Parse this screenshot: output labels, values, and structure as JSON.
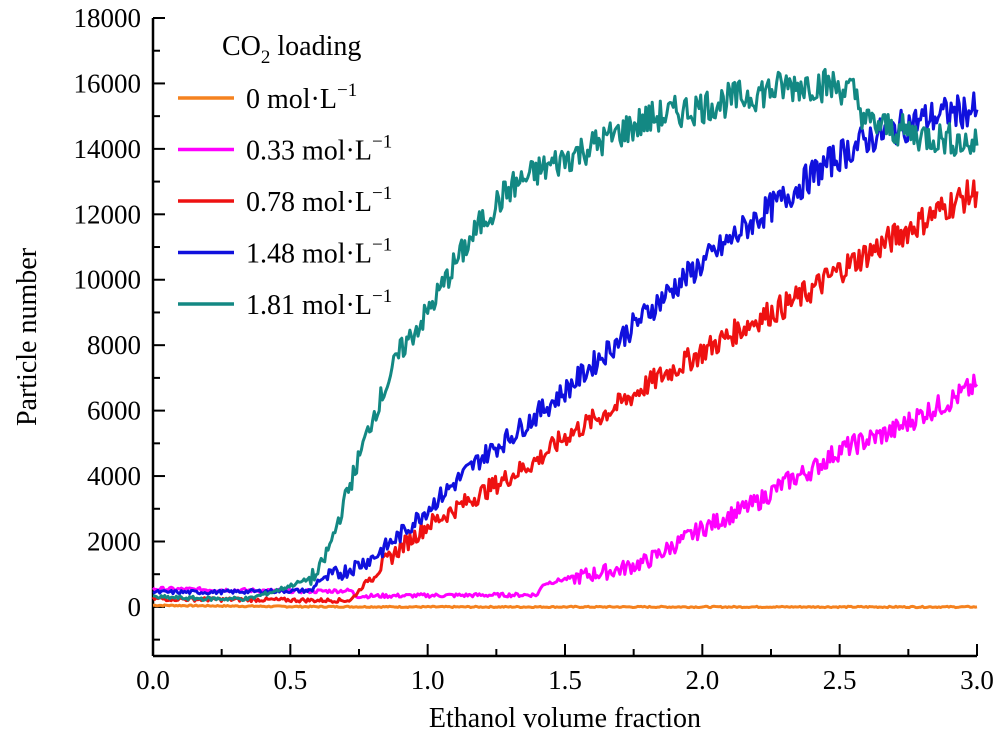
{
  "chart_data": {
    "type": "line",
    "title": "",
    "xlabel": "Ethanol volume fraction",
    "ylabel": "Particle number",
    "xlim": [
      0,
      3.0
    ],
    "ylim": [
      -1500,
      18000
    ],
    "xticks": [
      "0.0",
      "0.5",
      "1.0",
      "1.5",
      "2.0",
      "2.5",
      "3.0"
    ],
    "xtick_values": [
      0,
      0.5,
      1.0,
      1.5,
      2.0,
      2.5,
      3.0
    ],
    "yticks": [
      "0",
      "2000",
      "4000",
      "6000",
      "8000",
      "10000",
      "12000",
      "14000",
      "16000",
      "18000"
    ],
    "ytick_values": [
      0,
      2000,
      4000,
      6000,
      8000,
      10000,
      12000,
      14000,
      16000,
      18000
    ],
    "grid": false,
    "legend": {
      "title": "CO₂ loading",
      "title_main": "CO",
      "title_sub": "2",
      "title_rest": " loading",
      "placement": "top-left"
    },
    "series": [
      {
        "name": "0 mol·L⁻¹",
        "label_main": "0 mol·L",
        "label_sup": "−1",
        "color": "#f5821f",
        "x": [
          0,
          0.5,
          1.0,
          1.5,
          2.0,
          2.5,
          3.0
        ],
        "y": [
          50,
          10,
          0,
          0,
          0,
          0,
          0
        ]
      },
      {
        "name": "0.33 mol·L⁻¹",
        "label_main": "0.33 mol·L",
        "label_sup": "−1",
        "color": "#ff00ff",
        "x": [
          0,
          0.2,
          0.4,
          0.6,
          0.72,
          0.74,
          1.0,
          1.2,
          1.4,
          1.42,
          1.5,
          1.6,
          1.7,
          1.8,
          1.9,
          2.0,
          2.1,
          2.2,
          2.3,
          2.4,
          2.5,
          2.6,
          2.7,
          2.8,
          2.9,
          3.0
        ],
        "y": [
          550,
          530,
          500,
          480,
          500,
          330,
          350,
          360,
          370,
          700,
          850,
          1000,
          1150,
          1400,
          1900,
          2400,
          2800,
          3200,
          3800,
          4200,
          4800,
          5100,
          5400,
          5900,
          6300,
          6800
        ]
      },
      {
        "name": "0.78 mol·L⁻¹",
        "label_main": "0.78 mol·L",
        "label_sup": "−1",
        "color": "#ee1111",
        "x": [
          0,
          0.2,
          0.4,
          0.6,
          0.72,
          0.8,
          0.9,
          1.0,
          1.1,
          1.2,
          1.3,
          1.4,
          1.5,
          1.6,
          1.7,
          1.8,
          1.9,
          2.0,
          2.1,
          2.2,
          2.3,
          2.4,
          2.5,
          2.6,
          2.7,
          2.8,
          2.9,
          3.0
        ],
        "y": [
          250,
          230,
          220,
          200,
          200,
          1000,
          1800,
          2500,
          3000,
          3500,
          4000,
          4500,
          5200,
          5700,
          6200,
          6800,
          7300,
          7800,
          8300,
          8800,
          9200,
          9700,
          10300,
          10800,
          11300,
          11800,
          12300,
          12700
        ]
      },
      {
        "name": "1.48 mol·L⁻¹",
        "label_main": "1.48 mol·L",
        "label_sup": "−1",
        "color": "#1010dd",
        "x": [
          0,
          0.2,
          0.4,
          0.58,
          0.6,
          0.7,
          0.8,
          0.9,
          1.0,
          1.1,
          1.2,
          1.3,
          1.4,
          1.5,
          1.6,
          1.7,
          1.8,
          1.9,
          2.0,
          2.1,
          2.2,
          2.3,
          2.4,
          2.5,
          2.6,
          2.7,
          2.8,
          2.9,
          3.0
        ],
        "y": [
          450,
          450,
          480,
          500,
          800,
          1100,
          1500,
          2200,
          3000,
          3800,
          4600,
          5200,
          5900,
          6600,
          7400,
          8200,
          9000,
          9800,
          10500,
          11200,
          11900,
          12500,
          13200,
          13800,
          14300,
          14600,
          14900,
          15100,
          15200
        ]
      },
      {
        "name": "1.81 mol·L⁻¹",
        "label_main": "1.81 mol·L",
        "label_sup": "−1",
        "color": "#138883",
        "x": [
          0,
          0.2,
          0.35,
          0.45,
          0.55,
          0.6,
          0.65,
          0.7,
          0.8,
          0.9,
          1.0,
          1.1,
          1.2,
          1.3,
          1.4,
          1.5,
          1.6,
          1.7,
          1.8,
          1.9,
          2.0,
          2.1,
          2.2,
          2.3,
          2.4,
          2.5,
          2.55,
          2.6,
          2.7,
          2.8,
          2.9,
          3.0
        ],
        "y": [
          300,
          250,
          250,
          500,
          800,
          1000,
          2000,
          3300,
          5800,
          7800,
          9000,
          10500,
          11800,
          12800,
          13300,
          13700,
          14100,
          14500,
          14900,
          15100,
          15300,
          15500,
          15700,
          15900,
          16000,
          15900,
          15700,
          14800,
          14600,
          14400,
          14300,
          14100
        ]
      }
    ]
  }
}
